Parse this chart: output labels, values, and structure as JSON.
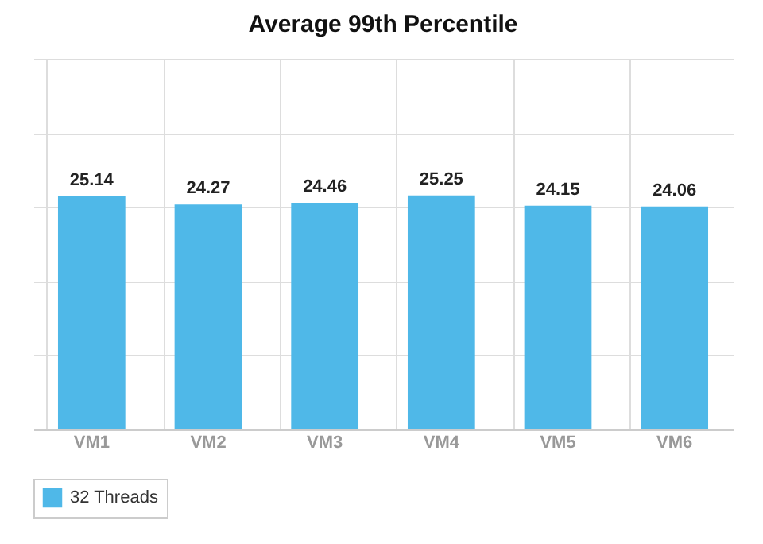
{
  "chart_data": {
    "type": "bar",
    "title": "Average 99th Percentile",
    "categories": [
      "VM1",
      "VM2",
      "VM3",
      "VM4",
      "VM5",
      "VM6"
    ],
    "series": [
      {
        "name": "32 Threads",
        "color": "#4fb8e8",
        "values": [
          25.14,
          24.27,
          24.46,
          25.25,
          24.15,
          24.06
        ]
      }
    ],
    "ylim": [
      0,
      40
    ],
    "yticks": [
      {
        "value": 0,
        "label": null
      },
      {
        "value": 8,
        "label": null
      },
      {
        "value": 16,
        "label": null
      },
      {
        "value": 24,
        "label": null
      },
      {
        "value": 32,
        "label": null
      },
      {
        "value": 40,
        "label": null
      }
    ],
    "grid": true,
    "tick_labels": "x",
    "data_labels": true,
    "legend": "bottom"
  }
}
